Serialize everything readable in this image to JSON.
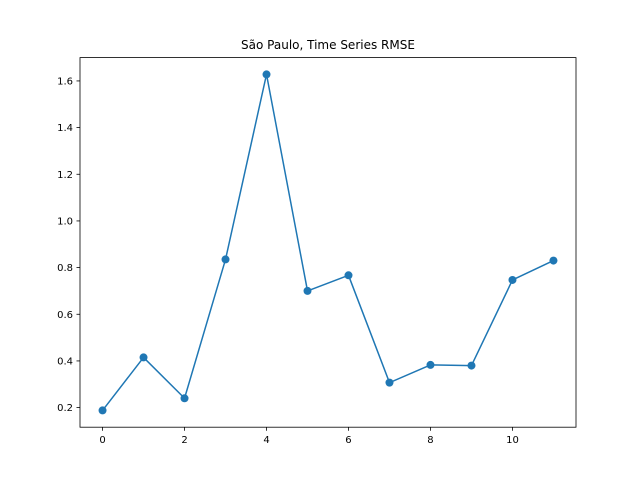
{
  "chart_data": {
    "type": "line",
    "title": "São Paulo, Time Series RMSE",
    "xlabel": "",
    "ylabel": "",
    "x": [
      0,
      1,
      2,
      3,
      4,
      5,
      6,
      7,
      8,
      9,
      10,
      11
    ],
    "series": [
      {
        "values": [
          0.188,
          0.415,
          0.24,
          0.835,
          1.628,
          0.7,
          0.767,
          0.307,
          0.383,
          0.38,
          0.747,
          0.83
        ],
        "color": "#1f77b4",
        "marker": "circle"
      }
    ],
    "xlim": [
      -0.55,
      11.55
    ],
    "ylim": [
      0.116,
      1.7
    ],
    "xticks": [
      0,
      2,
      4,
      6,
      8,
      10
    ],
    "yticks": [
      0.2,
      0.4,
      0.6,
      0.8,
      1.0,
      1.2,
      1.4,
      1.6
    ],
    "grid": false,
    "legend": "none"
  }
}
